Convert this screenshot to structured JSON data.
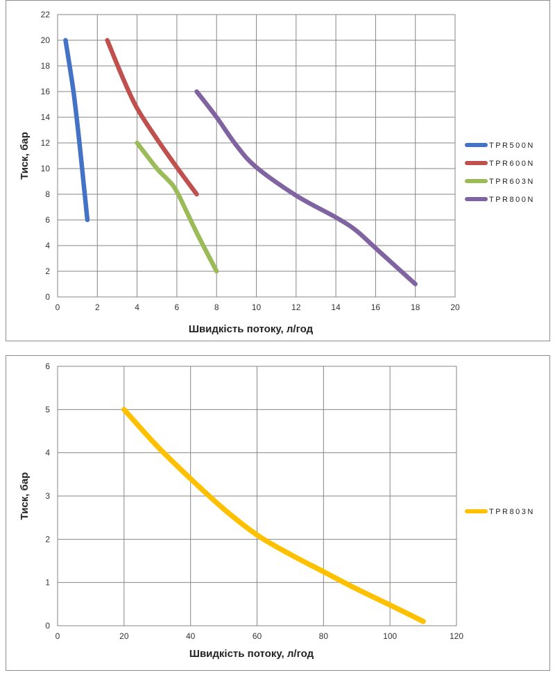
{
  "chart_data": [
    {
      "type": "line",
      "xlabel": "Швидкість потоку, л/год",
      "ylabel": "Тиск, бар",
      "xlim": [
        0,
        20
      ],
      "ylim": [
        0,
        22
      ],
      "xticks": [
        0,
        2,
        4,
        6,
        8,
        10,
        12,
        14,
        16,
        18,
        20
      ],
      "yticks": [
        0,
        2,
        4,
        6,
        8,
        10,
        12,
        14,
        16,
        18,
        20,
        22
      ],
      "grid": true,
      "legend_position": "right",
      "series": [
        {
          "name": "TPR500N",
          "color": "#4472c4",
          "points": [
            [
              0.4,
              20
            ],
            [
              0.8,
              16
            ],
            [
              1.1,
              12
            ],
            [
              1.3,
              9
            ],
            [
              1.5,
              6
            ]
          ]
        },
        {
          "name": "TPR600N",
          "color": "#c0504d",
          "points": [
            [
              2.5,
              20
            ],
            [
              3.3,
              17
            ],
            [
              4.0,
              14.7
            ],
            [
              5.0,
              12.3
            ],
            [
              6.0,
              10.1
            ],
            [
              7.0,
              8
            ]
          ]
        },
        {
          "name": "TPR603N",
          "color": "#9bbb59",
          "points": [
            [
              4.0,
              12
            ],
            [
              5.0,
              10
            ],
            [
              5.5,
              9.2
            ],
            [
              6.0,
              8.2
            ],
            [
              7.0,
              5.0
            ],
            [
              8.0,
              2
            ]
          ]
        },
        {
          "name": "TPR800N",
          "color": "#8064a2",
          "points": [
            [
              7.0,
              16
            ],
            [
              8.0,
              14
            ],
            [
              9.0,
              11.8
            ],
            [
              10.0,
              10.1
            ],
            [
              12.0,
              7.9
            ],
            [
              14.0,
              6.2
            ],
            [
              15.0,
              5.2
            ],
            [
              16.0,
              3.8
            ],
            [
              17.0,
              2.4
            ],
            [
              18.0,
              1
            ]
          ]
        }
      ]
    },
    {
      "type": "line",
      "xlabel": "Швидкість потоку, л/год",
      "ylabel": "Тиск, бар",
      "xlim": [
        0,
        120
      ],
      "ylim": [
        0,
        6
      ],
      "xticks": [
        0,
        20,
        40,
        60,
        80,
        100,
        120
      ],
      "yticks": [
        0,
        1,
        2,
        3,
        4,
        5,
        6
      ],
      "grid": true,
      "legend_position": "right",
      "series": [
        {
          "name": "TPR803N",
          "color": "#ffc000",
          "points": [
            [
              20,
              5
            ],
            [
              30,
              4.15
            ],
            [
              40,
              3.4
            ],
            [
              50,
              2.7
            ],
            [
              60,
              2.1
            ],
            [
              70,
              1.65
            ],
            [
              80,
              1.25
            ],
            [
              90,
              0.85
            ],
            [
              100,
              0.48
            ],
            [
              110,
              0.1
            ]
          ]
        }
      ]
    }
  ]
}
